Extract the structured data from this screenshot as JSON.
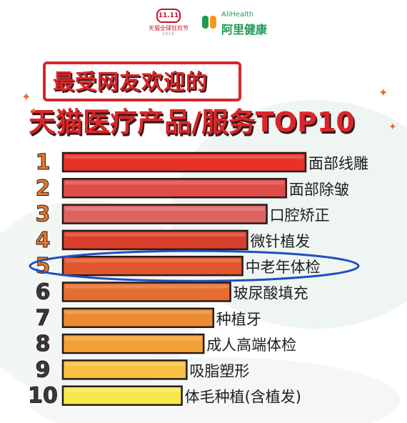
{
  "header": {
    "tmall_logo_text": "天猫全球狂欢节",
    "tmall_mark": "11.11",
    "tmall_year": "2019",
    "alihealth_en": "AliHealth",
    "alihealth_cn": "阿里健康"
  },
  "title": {
    "line1": "最受网友欢迎的",
    "line2": "天猫医疗产品/服务TOP10"
  },
  "colors": {
    "title_red": "#d8272a",
    "highlight_ring": "#1f4fbf",
    "bar_outline": "#2a1a1a",
    "bar_colors": [
      "#e8312b",
      "#df4b46",
      "#dc6460",
      "#d8402c",
      "#e2562d",
      "#e56e2f",
      "#ea8b31",
      "#f0a236",
      "#f6c13f",
      "#f8e74b"
    ],
    "rank_colors": [
      "#e27a2a",
      "#e27a2a",
      "#e27a2a",
      "#e27a2a",
      "#e27a2a",
      "#3a3a3a",
      "#3a3a3a",
      "#3a3a3a",
      "#3a3a3a",
      "#3a3a3a"
    ]
  },
  "chart_data": {
    "type": "bar",
    "orientation": "horizontal",
    "ranks": [
      "1",
      "2",
      "3",
      "4",
      "5",
      "6",
      "7",
      "8",
      "9",
      "10"
    ],
    "categories": [
      "面部线雕",
      "面部除皱",
      "口腔矫正",
      "微针植发",
      "中老年体检",
      "玻尿酸填充",
      "种植牙",
      "成人高端体检",
      "吸脂塑形",
      "体毛种植(含植发)"
    ],
    "values": [
      100,
      92,
      84,
      76,
      74,
      69,
      62,
      58,
      51,
      49
    ],
    "highlighted_rank": "5",
    "xlim": [
      0,
      100
    ],
    "title": "最受网友欢迎的天猫医疗产品/服务TOP10",
    "xlabel": "",
    "ylabel": "",
    "grid": false,
    "legend": "none"
  }
}
